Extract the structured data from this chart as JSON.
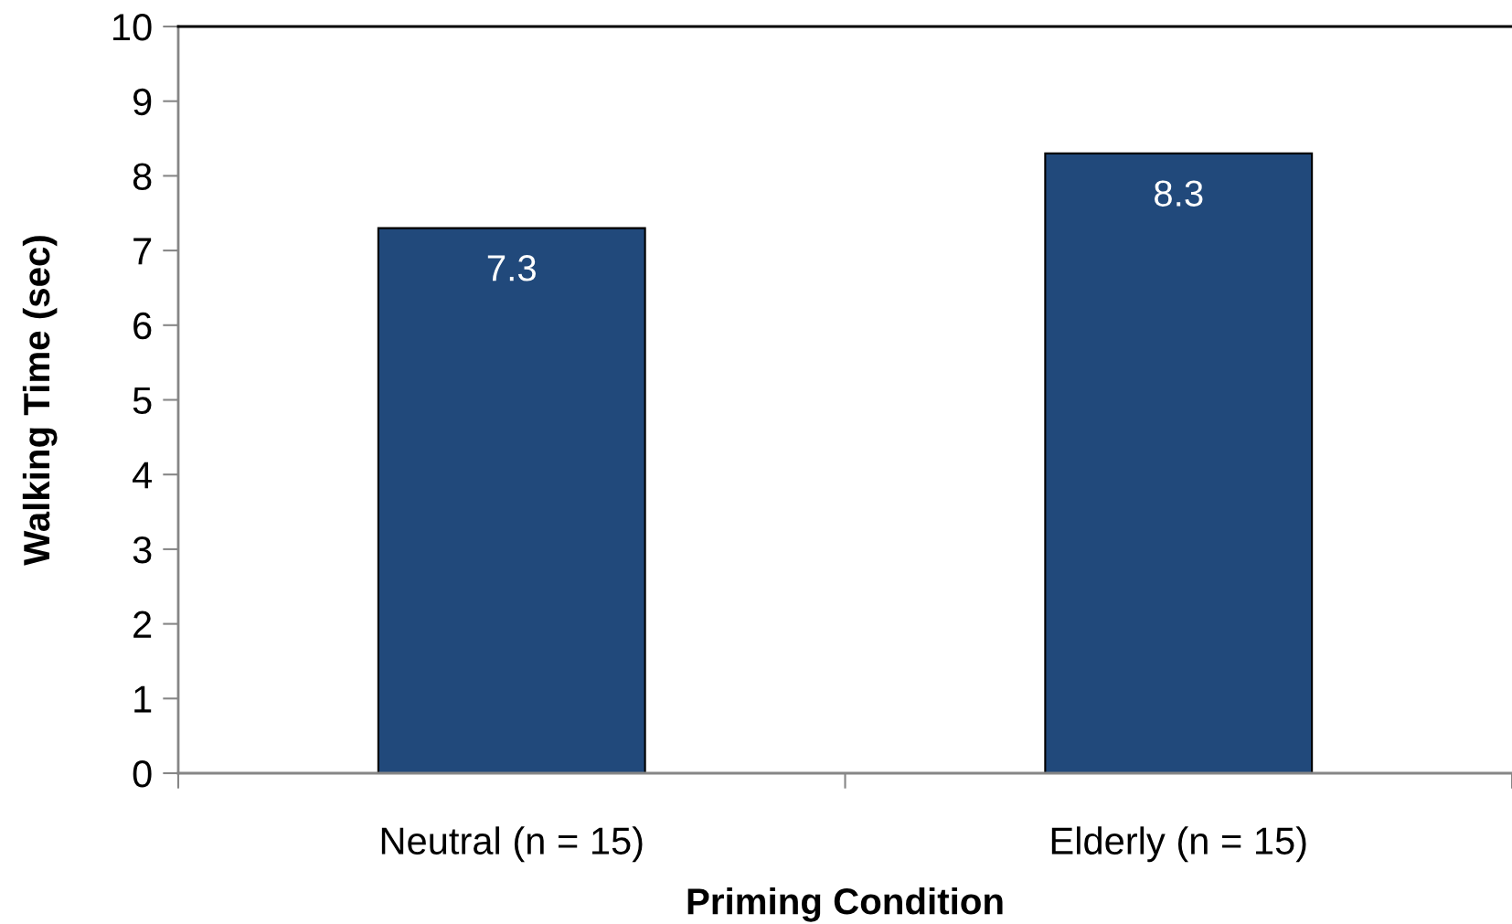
{
  "chart_data": {
    "type": "bar",
    "categories": [
      "Neutral (n = 15)",
      "Elderly (n = 15)"
    ],
    "values": [
      7.3,
      8.3
    ],
    "color": "#21497b",
    "xlabel": "Priming Condition",
    "ylabel": "Walking Time (sec)",
    "ylim": [
      0,
      10
    ],
    "yticks": [
      0,
      1,
      2,
      3,
      4,
      5,
      6,
      7,
      8,
      9,
      10
    ],
    "data_labels": true
  }
}
